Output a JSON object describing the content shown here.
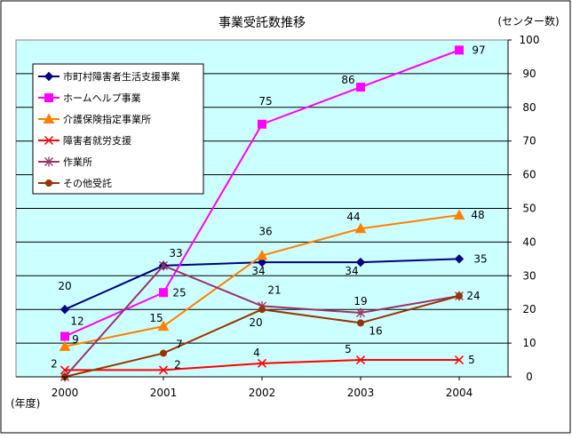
{
  "chart_data": {
    "type": "line",
    "title": "事業受託数推移",
    "xlabel": "(年度)",
    "ylabel": "(センター数)",
    "x": [
      "2000",
      "2001",
      "2002",
      "2003",
      "2004"
    ],
    "ylim": [
      0,
      100
    ],
    "yticks": [
      0,
      10,
      20,
      30,
      40,
      50,
      60,
      70,
      80,
      90,
      100
    ],
    "y_axis_side": "right",
    "grid": true,
    "legend_position": "left-upper",
    "plot_background": "#ccffff",
    "series": [
      {
        "name": "市町村障害者生活支援事業",
        "values": [
          20,
          33,
          34,
          34,
          35
        ],
        "color": "#000080",
        "marker": "diamond",
        "labels": [
          "20",
          "33",
          "34",
          "34",
          "35"
        ]
      },
      {
        "name": "ホームヘルプ事業",
        "values": [
          12,
          25,
          75,
          86,
          97
        ],
        "color": "#ff00ff",
        "marker": "square",
        "labels": [
          "12",
          "25",
          "75",
          "86",
          "97"
        ]
      },
      {
        "name": "介護保険指定事業所",
        "values": [
          9,
          15,
          36,
          44,
          48
        ],
        "color": "#ff8000",
        "marker": "triangle",
        "labels": [
          "9",
          "15",
          "36",
          "44",
          "48"
        ]
      },
      {
        "name": "障害者就労支援",
        "values": [
          2,
          2,
          4,
          5,
          5
        ],
        "color": "#ff0000",
        "marker": "x",
        "labels": [
          "2",
          "2",
          "4",
          "5",
          "5"
        ]
      },
      {
        "name": "作業所",
        "values": [
          0,
          33,
          21,
          19,
          24
        ],
        "color": "#993366",
        "marker": "star",
        "labels": [
          "",
          "",
          "21",
          "19",
          ""
        ]
      },
      {
        "name": "その他受託",
        "values": [
          0,
          7,
          20,
          16,
          24
        ],
        "color": "#993300",
        "marker": "circle",
        "labels": [
          "",
          "7",
          "20",
          "16",
          "24"
        ]
      }
    ]
  }
}
